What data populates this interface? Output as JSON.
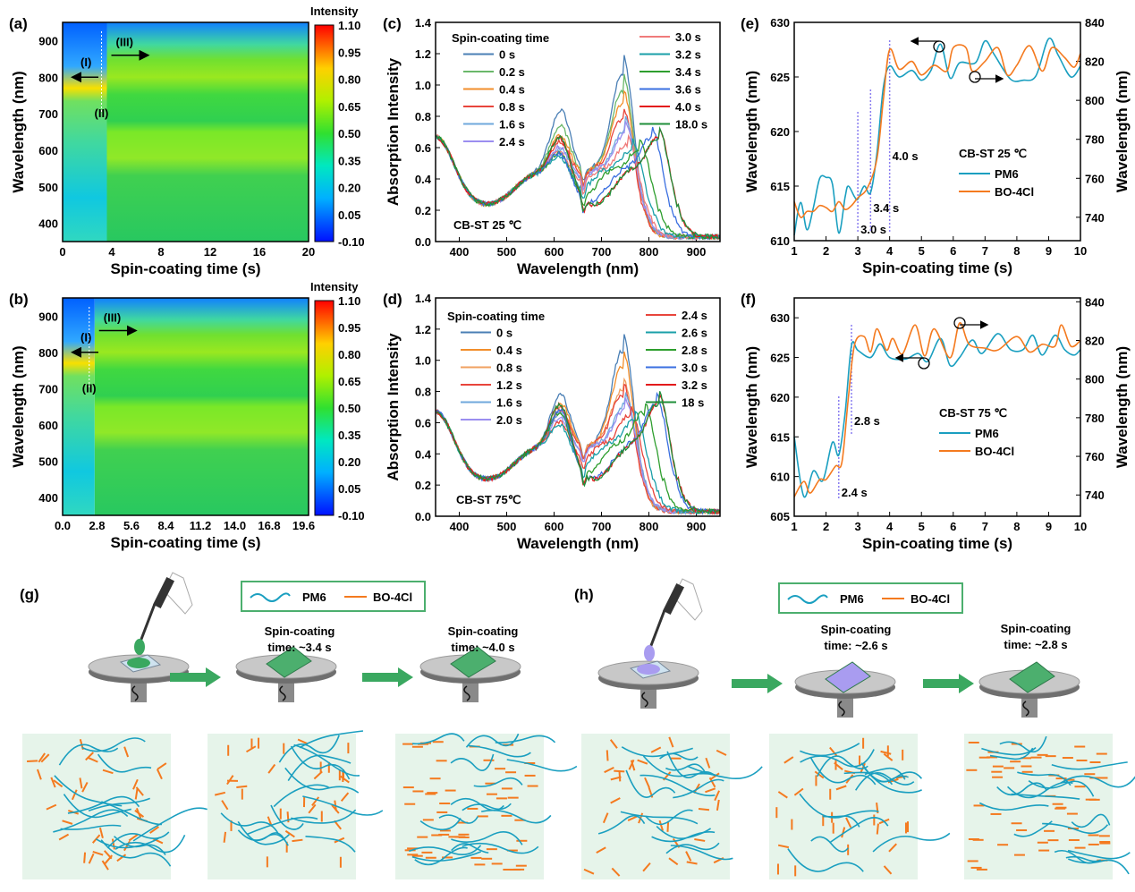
{
  "panels": {
    "a": "(a)",
    "b": "(b)",
    "c": "(c)",
    "d": "(d)",
    "e": "(e)",
    "f": "(f)",
    "g": "(g)",
    "h": "(h)"
  },
  "colors": {
    "pm6": "#1a9fc0",
    "bo4cl": "#f47a1f",
    "arrow": "#3aa860",
    "legend_border": "#4caf6e",
    "film_green": "#4caf6e",
    "film_purple": "#a99cf0",
    "morph_bg": "#e6f4ea"
  },
  "chart_data": [
    {
      "id": "a",
      "type": "heatmap",
      "xlabel": "Spin-coating time (s)",
      "ylabel": "Wavelength (nm)",
      "xticks": [
        "0",
        "4",
        "8",
        "12",
        "16",
        "20"
      ],
      "xlim": [
        0,
        20
      ],
      "yticks": [
        "400",
        "500",
        "600",
        "700",
        "800",
        "900"
      ],
      "ylim": [
        350,
        950
      ],
      "colorbar_title": "Intensity",
      "colorbar_ticks": [
        "1.10",
        "0.95",
        "0.80",
        "0.65",
        "0.50",
        "0.35",
        "0.20",
        "0.05",
        "-0.10"
      ],
      "annotations": [
        "(I)",
        "(II)",
        "(III)"
      ]
    },
    {
      "id": "b",
      "type": "heatmap",
      "xlabel": "Spin-coating time (s)",
      "ylabel": "Wavelength (nm)",
      "xticks": [
        "0.0",
        "2.8",
        "5.6",
        "8.4",
        "11.2",
        "14.0",
        "16.8",
        "19.6"
      ],
      "xlim": [
        0,
        20
      ],
      "yticks": [
        "400",
        "500",
        "600",
        "700",
        "800",
        "900"
      ],
      "ylim": [
        350,
        950
      ],
      "colorbar_title": "Intensity",
      "colorbar_ticks": [
        "1.10",
        "0.95",
        "0.80",
        "0.65",
        "0.50",
        "0.35",
        "0.20",
        "0.05",
        "-0.10"
      ],
      "annotations": [
        "(I)",
        "(II)",
        "(III)"
      ]
    },
    {
      "id": "c",
      "type": "line",
      "xlabel": "Wavelength (nm)",
      "ylabel": "Absorption Intensity",
      "xlim": [
        350,
        950
      ],
      "ylim": [
        0,
        1.4
      ],
      "xticks": [
        "400",
        "500",
        "600",
        "700",
        "800",
        "900"
      ],
      "yticks": [
        "0.0",
        "0.2",
        "0.4",
        "0.6",
        "0.8",
        "1.0",
        "1.2",
        "1.4"
      ],
      "legend_title": "Spin-coating time",
      "note": "CB-ST 25 ℃",
      "series": [
        {
          "name": "0 s",
          "color": "#4a7fb5",
          "peak_615": 0.86,
          "peak_main": 1.12,
          "peak_main_nm": 745
        },
        {
          "name": "0.2 s",
          "color": "#6ab86a",
          "peak_615": 0.76,
          "peak_main": 1.0,
          "peak_main_nm": 745
        },
        {
          "name": "0.4 s",
          "color": "#f28e2b",
          "peak_615": 0.7,
          "peak_main": 0.92,
          "peak_main_nm": 745
        },
        {
          "name": "0.8 s",
          "color": "#e8453c",
          "peak_615": 0.66,
          "peak_main": 0.82,
          "peak_main_nm": 745
        },
        {
          "name": "1.6 s",
          "color": "#6fa8dc",
          "peak_615": 0.62,
          "peak_main": 0.75,
          "peak_main_nm": 750
        },
        {
          "name": "2.4 s",
          "color": "#9b8ef0",
          "peak_615": 0.63,
          "peak_main": 0.72,
          "peak_main_nm": 750
        },
        {
          "name": "3.0 s",
          "color": "#f07b7b",
          "peak_615": 0.6,
          "peak_main": 0.65,
          "peak_main_nm": 755
        },
        {
          "name": "3.2 s",
          "color": "#1a9fa8",
          "peak_615": 0.58,
          "peak_main": 0.62,
          "peak_main_nm": 765
        },
        {
          "name": "3.4 s",
          "color": "#2e9e2e",
          "peak_615": 0.6,
          "peak_main": 0.62,
          "peak_main_nm": 780
        },
        {
          "name": "3.6 s",
          "color": "#3a6fe0",
          "peak_615": 0.6,
          "peak_main": 0.7,
          "peak_main_nm": 805
        },
        {
          "name": "4.0 s",
          "color": "#e31a1c",
          "peak_615": 0.7,
          "peak_main": 0.7,
          "peak_main_nm": 820
        },
        {
          "name": "18.0 s",
          "color": "#1f8f3a",
          "peak_615": 0.7,
          "peak_main": 0.7,
          "peak_main_nm": 820
        }
      ]
    },
    {
      "id": "d",
      "type": "line",
      "xlabel": "Wavelength (nm)",
      "ylabel": "Absorption Intensity",
      "xlim": [
        350,
        950
      ],
      "ylim": [
        0,
        1.4
      ],
      "xticks": [
        "400",
        "500",
        "600",
        "700",
        "800",
        "900"
      ],
      "yticks": [
        "0.0",
        "0.2",
        "0.4",
        "0.6",
        "0.8",
        "1.0",
        "1.2",
        "1.4"
      ],
      "legend_title": "Spin-coating time",
      "note": "CB-ST 75℃",
      "series": [
        {
          "name": "0 s",
          "color": "#4a7fb5",
          "peak_615": 0.8,
          "peak_main": 1.1,
          "peak_main_nm": 745
        },
        {
          "name": "0.4 s",
          "color": "#f28e2b",
          "peak_615": 0.75,
          "peak_main": 1.0,
          "peak_main_nm": 745
        },
        {
          "name": "0.8 s",
          "color": "#f0a060",
          "peak_615": 0.72,
          "peak_main": 0.85,
          "peak_main_nm": 745
        },
        {
          "name": "1.2 s",
          "color": "#e8453c",
          "peak_615": 0.7,
          "peak_main": 0.82,
          "peak_main_nm": 745
        },
        {
          "name": "1.6 s",
          "color": "#6fa8dc",
          "peak_615": 0.68,
          "peak_main": 0.75,
          "peak_main_nm": 750
        },
        {
          "name": "2.0 s",
          "color": "#9b8ef0",
          "peak_615": 0.66,
          "peak_main": 0.72,
          "peak_main_nm": 750
        },
        {
          "name": "2.4 s",
          "color": "#e8453c",
          "peak_615": 0.64,
          "peak_main": 0.68,
          "peak_main_nm": 760
        },
        {
          "name": "2.6 s",
          "color": "#1a9fa8",
          "peak_615": 0.62,
          "peak_main": 0.65,
          "peak_main_nm": 770
        },
        {
          "name": "2.8 s",
          "color": "#2e9e2e",
          "peak_615": 0.7,
          "peak_main": 0.7,
          "peak_main_nm": 790
        },
        {
          "name": "3.0 s",
          "color": "#3a6fe0",
          "peak_615": 0.72,
          "peak_main": 0.75,
          "peak_main_nm": 815
        },
        {
          "name": "3.2 s",
          "color": "#e31a1c",
          "peak_615": 0.75,
          "peak_main": 0.76,
          "peak_main_nm": 820
        },
        {
          "name": "18 s",
          "color": "#1f8f3a",
          "peak_615": 0.75,
          "peak_main": 0.76,
          "peak_main_nm": 820
        }
      ]
    },
    {
      "id": "e",
      "type": "line",
      "xlabel": "Spin-coating time (s)",
      "ylabel": "Wavelength (nm)",
      "ylabel_right": "Wavelength (nm)",
      "xlim": [
        1,
        10
      ],
      "ylim": [
        610,
        630
      ],
      "ylim_right": [
        728,
        840
      ],
      "xticks": [
        "1",
        "2",
        "3",
        "4",
        "5",
        "6",
        "7",
        "8",
        "9",
        "10"
      ],
      "yticks": [
        "610",
        "615",
        "620",
        "625",
        "630"
      ],
      "yticks_right": [
        "740",
        "760",
        "780",
        "800",
        "820",
        "840"
      ],
      "note": "CB-ST 25 ℃",
      "markers": [
        "3.0 s",
        "3.4 s",
        "4.0 s"
      ],
      "marker_x": [
        3.0,
        3.4,
        4.0
      ],
      "series": [
        {
          "name": "PM6",
          "axis": "left",
          "x": [
            1,
            1.2,
            1.4,
            1.6,
            1.8,
            2.0,
            2.2,
            2.4,
            2.6,
            2.7,
            2.9,
            3.0,
            3.2,
            3.4,
            3.6,
            3.8,
            4.0,
            4.3,
            4.7,
            5.0,
            5.3,
            5.6,
            5.9,
            6.2,
            6.7,
            7.0,
            7.3,
            7.8,
            8.2,
            8.6,
            9.0,
            9.3,
            9.7,
            10
          ],
          "y": [
            610.5,
            613.5,
            611,
            613,
            615.7,
            615.8,
            615.2,
            610.7,
            614,
            615,
            614,
            613.8,
            615,
            614.4,
            618,
            624,
            626,
            625,
            625.6,
            624.7,
            625.6,
            628,
            624.9,
            626.3,
            626.3,
            628.3,
            627,
            624.8,
            624.7,
            625.1,
            628.5,
            627,
            625,
            626
          ]
        },
        {
          "name": "BO-4Cl",
          "axis": "right",
          "x": [
            1,
            1.2,
            1.4,
            1.6,
            1.8,
            2.0,
            2.2,
            2.4,
            2.6,
            2.8,
            3.0,
            3.3,
            3.6,
            3.8,
            4.0,
            4.3,
            4.7,
            5.0,
            5.4,
            5.8,
            6.0,
            6.4,
            6.6,
            7.0,
            7.4,
            7.7,
            8.0,
            8.4,
            8.8,
            9.1,
            9.5,
            9.8,
            10
          ],
          "y": [
            748,
            740,
            743,
            743,
            746,
            745,
            743,
            748,
            744,
            746,
            750,
            755,
            770,
            800,
            826,
            816,
            820,
            813,
            818,
            815,
            827,
            827,
            815,
            820,
            827,
            813,
            818,
            828,
            815,
            827,
            822,
            817,
            824
          ]
        }
      ]
    },
    {
      "id": "f",
      "type": "line",
      "xlabel": "Spin-coating time (s)",
      "ylabel": "Wavelength (nm)",
      "ylabel_right": "Wavelength (nm)",
      "xlim": [
        1,
        10
      ],
      "ylim": [
        605,
        632.5
      ],
      "ylim_right": [
        729,
        842
      ],
      "xticks": [
        "1",
        "2",
        "3",
        "4",
        "5",
        "6",
        "7",
        "8",
        "9",
        "10"
      ],
      "yticks": [
        "605",
        "610",
        "615",
        "620",
        "625",
        "630"
      ],
      "yticks_right": [
        "740",
        "760",
        "780",
        "800",
        "820",
        "840"
      ],
      "note": "CB-ST 75 ℃",
      "markers": [
        "2.4 s",
        "2.8 s"
      ],
      "marker_x": [
        2.4,
        2.8
      ],
      "series": [
        {
          "name": "PM6",
          "axis": "left",
          "x": [
            1,
            1.3,
            1.6,
            1.9,
            2.2,
            2.4,
            2.6,
            2.8,
            3.0,
            3.4,
            3.7,
            4.0,
            4.5,
            4.9,
            5.2,
            5.6,
            5.9,
            6.2,
            6.6,
            6.9,
            7.4,
            7.8,
            8.2,
            8.5,
            8.8,
            9.2,
            9.5,
            9.8,
            10
          ],
          "y": [
            615,
            607.5,
            610.7,
            609.5,
            614.3,
            612.7,
            618,
            626.5,
            625.9,
            625,
            626.7,
            625,
            624.8,
            625.5,
            624.5,
            627.4,
            624,
            625,
            627.2,
            625.5,
            628,
            626,
            626,
            627.8,
            625.3,
            627.8,
            626,
            625.3,
            626
          ]
        },
        {
          "name": "BO-4Cl",
          "axis": "right",
          "x": [
            1,
            1.3,
            1.5,
            1.8,
            2.0,
            2.3,
            2.5,
            2.7,
            2.9,
            3.2,
            3.4,
            3.6,
            3.9,
            4.1,
            4.4,
            4.8,
            5.1,
            5.4,
            5.9,
            6.2,
            6.5,
            7.0,
            7.4,
            8.0,
            8.4,
            8.8,
            9.2,
            9.4,
            9.7,
            10
          ],
          "y": [
            739,
            747,
            741,
            748,
            748,
            755,
            757,
            790,
            818,
            822,
            814,
            826,
            815,
            821,
            813,
            828,
            812,
            826,
            811,
            829,
            818,
            816,
            815,
            822,
            814,
            818,
            817,
            828,
            817,
            820
          ]
        }
      ]
    }
  ],
  "schematic": {
    "g_legend": [
      "PM6",
      "BO-4Cl"
    ],
    "h_legend": [
      "PM6",
      "BO-4Cl"
    ],
    "g_steps": [
      "Spin-coating\ntime: ~3.4 s",
      "Spin-coating\ntime: ~4.0 s"
    ],
    "g_step1_l1": "Spin-coating",
    "g_step1_l2": "time: ~3.4 s",
    "g_step2_l1": "Spin-coating",
    "g_step2_l2": "time: ~4.0 s",
    "h_step1_l1": "Spin-coating",
    "h_step1_l2": "time: ~2.6 s",
    "h_step2_l1": "Spin-coating",
    "h_step2_l2": "time: ~2.8 s"
  }
}
